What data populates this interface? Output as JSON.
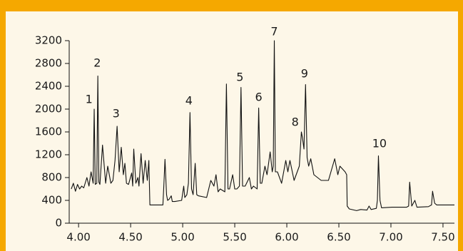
{
  "chart_data": {
    "type": "line",
    "xlim": [
      3.91,
      7.61
    ],
    "xticks": [
      {
        "value": 4,
        "label": "4.00"
      },
      {
        "value": 4.5,
        "label": "4.50"
      },
      {
        "value": 5,
        "label": "5.00"
      },
      {
        "value": 5.5,
        "label": "5.50"
      },
      {
        "value": 6,
        "label": "6.00"
      },
      {
        "value": 6.5,
        "label": "6.50"
      },
      {
        "value": 7,
        "label": "7.00"
      },
      {
        "value": 7.5,
        "label": "7.50"
      }
    ],
    "ylim": [
      0,
      3200
    ],
    "yticks": [
      0,
      400,
      800,
      1200,
      1600,
      2000,
      2400,
      2800,
      3200
    ],
    "series": [
      {
        "color": "#111111",
        "x": [
          3.93,
          3.95,
          3.97,
          3.99,
          4.01,
          4.03,
          4.05,
          4.08,
          4.1,
          4.12,
          4.14,
          4.15,
          4.16,
          4.175,
          4.185,
          4.195,
          4.205,
          4.23,
          4.26,
          4.28,
          4.31,
          4.33,
          4.35,
          4.37,
          4.39,
          4.41,
          4.43,
          4.445,
          4.46,
          4.48,
          4.51,
          4.52,
          4.53,
          4.55,
          4.57,
          4.58,
          4.6,
          4.62,
          4.64,
          4.66,
          4.675,
          4.685,
          4.81,
          4.82,
          4.83,
          4.845,
          4.855,
          4.87,
          4.89,
          4.9,
          4.925,
          4.99,
          5.01,
          5.02,
          5.04,
          5.055,
          5.07,
          5.085,
          5.1,
          5.12,
          5.135,
          5.15,
          5.23,
          5.27,
          5.3,
          5.32,
          5.34,
          5.36,
          5.405,
          5.42,
          5.435,
          5.45,
          5.48,
          5.5,
          5.52,
          5.545,
          5.56,
          5.575,
          5.6,
          5.64,
          5.66,
          5.68,
          5.715,
          5.73,
          5.745,
          5.76,
          5.79,
          5.81,
          5.84,
          5.86,
          5.87,
          5.88,
          5.89,
          5.91,
          5.95,
          5.99,
          6.01,
          6.03,
          6.07,
          6.12,
          6.14,
          6.15,
          6.165,
          6.18,
          6.195,
          6.21,
          6.23,
          6.26,
          6.33,
          6.4,
          6.46,
          6.49,
          6.51,
          6.56,
          6.575,
          6.58,
          6.6,
          6.67,
          6.71,
          6.77,
          6.79,
          6.81,
          6.86,
          6.87,
          6.88,
          6.895,
          6.91,
          7.01,
          7.15,
          7.17,
          7.18,
          7.2,
          7.23,
          7.25,
          7.36,
          7.39,
          7.4,
          7.42,
          7.44,
          7.61
        ],
        "values": [
          600,
          700,
          560,
          680,
          600,
          650,
          620,
          800,
          650,
          900,
          700,
          2000,
          680,
          700,
          2580,
          720,
          680,
          1370,
          700,
          1000,
          700,
          750,
          1100,
          1700,
          900,
          1330,
          850,
          1050,
          700,
          680,
          880,
          650,
          1300,
          700,
          800,
          650,
          1220,
          700,
          1100,
          750,
          1100,
          320,
          320,
          700,
          1120,
          500,
          400,
          420,
          480,
          380,
          380,
          400,
          650,
          450,
          500,
          700,
          1940,
          600,
          500,
          1050,
          500,
          480,
          450,
          750,
          650,
          850,
          550,
          600,
          550,
          2440,
          600,
          600,
          850,
          600,
          600,
          650,
          2380,
          650,
          650,
          800,
          600,
          650,
          600,
          2020,
          700,
          700,
          1000,
          850,
          1250,
          900,
          1000,
          3200,
          900,
          900,
          700,
          1100,
          900,
          1100,
          750,
          1000,
          1600,
          1500,
          1300,
          2430,
          1150,
          1000,
          1130,
          850,
          750,
          750,
          1130,
          850,
          1000,
          900,
          850,
          300,
          250,
          220,
          240,
          230,
          300,
          240,
          260,
          400,
          1180,
          400,
          270,
          280,
          280,
          300,
          720,
          300,
          400,
          280,
          290,
          320,
          560,
          350,
          320,
          320
        ]
      }
    ],
    "annotations": [
      {
        "text": "1",
        "x": 4.1,
        "y": 2160
      },
      {
        "text": "2",
        "x": 4.18,
        "y": 2800
      },
      {
        "text": "3",
        "x": 4.36,
        "y": 1910
      },
      {
        "text": "4",
        "x": 5.06,
        "y": 2140
      },
      {
        "text": "5",
        "x": 5.55,
        "y": 2550
      },
      {
        "text": "6",
        "x": 5.73,
        "y": 2200
      },
      {
        "text": "7",
        "x": 5.88,
        "y": 3350
      },
      {
        "text": "8",
        "x": 6.08,
        "y": 1760
      },
      {
        "text": "9",
        "x": 6.17,
        "y": 2610
      },
      {
        "text": "10",
        "x": 6.89,
        "y": 1390
      }
    ]
  }
}
